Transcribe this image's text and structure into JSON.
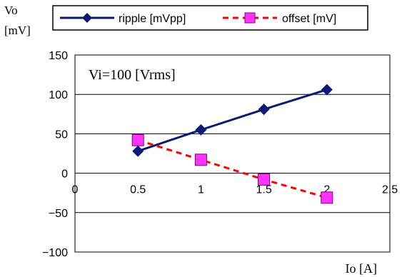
{
  "chart_data": {
    "type": "line",
    "x": [
      0.5,
      1,
      1.5,
      2
    ],
    "series": [
      {
        "name": "ripple [mVpp]",
        "values": [
          28,
          55,
          81,
          106
        ],
        "color": "#0b1a73",
        "marker": "diamond",
        "line_style": "solid"
      },
      {
        "name": "offset [mV]",
        "values": [
          42,
          17,
          -8,
          -31
        ],
        "color": "#ff33ff",
        "line_color": "#ff0000",
        "marker": "square",
        "line_style": "dashed"
      }
    ],
    "y_axis_label_line1": "Vo",
    "y_axis_label_line2": "[mV]",
    "xlabel": "Io [A]",
    "annotation": "Vi=100 [Vrms]",
    "xlim": [
      0,
      2.5
    ],
    "ylim": [
      -100,
      150
    ],
    "x_ticks": [
      "0",
      "0.5",
      "1",
      "1.5",
      "2",
      "2.5"
    ],
    "y_ticks": [
      "150",
      "100",
      "50",
      "0",
      "−50",
      "−100"
    ],
    "grid": "horizontal",
    "legend_position": "top"
  }
}
